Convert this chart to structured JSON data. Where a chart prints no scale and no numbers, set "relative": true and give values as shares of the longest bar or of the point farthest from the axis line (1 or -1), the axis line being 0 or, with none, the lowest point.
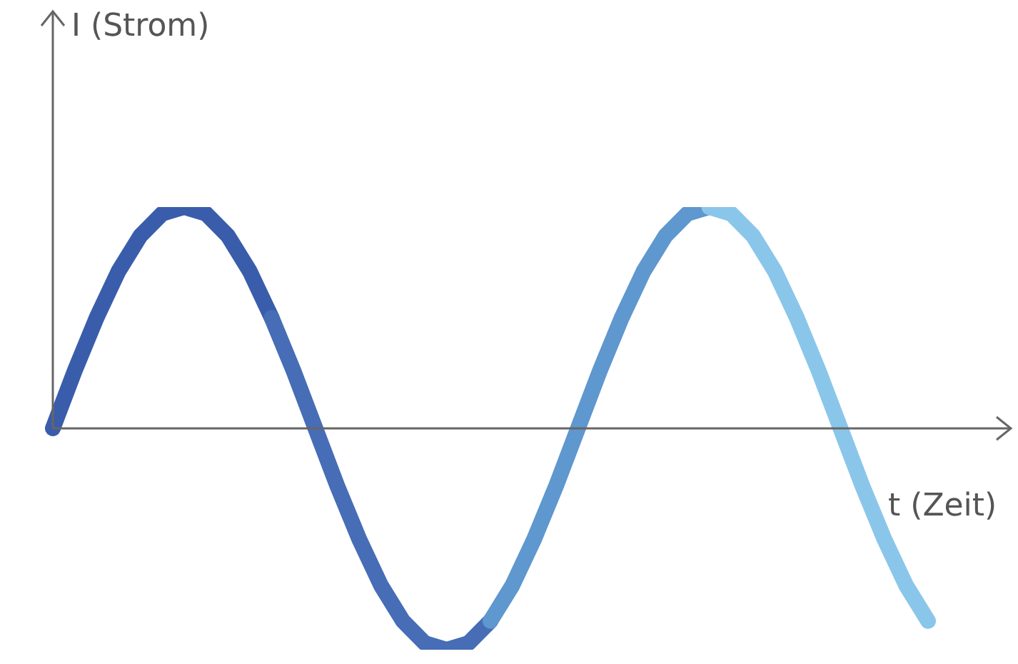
{
  "chart_data": {
    "type": "line",
    "relative": true,
    "xlabel": "t (Zeit)",
    "annotations": [
      "I (Strom)"
    ],
    "categories": [
      null,
      null,
      null,
      null,
      null,
      null,
      null,
      null,
      null,
      null,
      null,
      null,
      null,
      null,
      null,
      null,
      null,
      null,
      null,
      null,
      null,
      null,
      null,
      null,
      null,
      null,
      null,
      null,
      null,
      null,
      null,
      null,
      null,
      null,
      null,
      null,
      null,
      null,
      null,
      null,
      null
    ],
    "series": [
      {
        "color": "#3a5dab",
        "values": [
          0,
          0.26,
          0.5,
          0.71,
          0.87,
          0.97,
          1,
          0.97,
          0.87,
          0.71,
          0.5,
          null,
          null,
          null,
          null,
          null,
          null,
          null,
          null,
          null,
          null,
          null,
          null,
          null,
          null,
          null,
          null,
          null,
          null,
          null,
          null,
          null,
          null,
          null,
          null,
          null,
          null,
          null,
          null,
          null,
          null
        ]
      },
      {
        "color": "#466db6",
        "values": [
          null,
          null,
          null,
          null,
          null,
          null,
          null,
          null,
          null,
          null,
          0.5,
          0.26,
          0,
          -0.26,
          -0.5,
          -0.71,
          -0.87,
          -0.97,
          -1,
          -0.97,
          -0.87,
          null,
          null,
          null,
          null,
          null,
          null,
          null,
          null,
          null,
          null,
          null,
          null,
          null,
          null,
          null,
          null,
          null,
          null,
          null,
          null
        ]
      },
      {
        "color": "#5f97cf",
        "values": [
          null,
          null,
          null,
          null,
          null,
          null,
          null,
          null,
          null,
          null,
          null,
          null,
          null,
          null,
          null,
          null,
          null,
          null,
          null,
          null,
          -0.87,
          -0.71,
          -0.5,
          -0.26,
          0,
          0.26,
          0.5,
          0.71,
          0.87,
          0.97,
          1,
          null,
          null,
          null,
          null,
          null,
          null,
          null,
          null,
          null,
          null
        ]
      },
      {
        "color": "#8ac6ea",
        "values": [
          null,
          null,
          null,
          null,
          null,
          null,
          null,
          null,
          null,
          null,
          null,
          null,
          null,
          null,
          null,
          null,
          null,
          null,
          null,
          null,
          null,
          null,
          null,
          null,
          null,
          null,
          null,
          null,
          null,
          null,
          1,
          0.97,
          0.87,
          0.71,
          0.5,
          0.26,
          0,
          -0.26,
          -0.5,
          -0.71,
          -0.87
        ]
      }
    ]
  }
}
